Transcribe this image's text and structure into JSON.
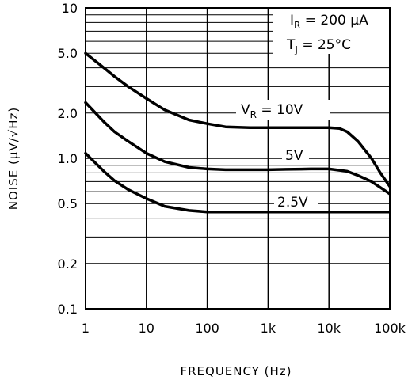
{
  "chart_data": {
    "type": "line",
    "xscale": "log",
    "yscale": "log",
    "xlim": [
      1,
      100000
    ],
    "ylim": [
      0.1,
      10
    ],
    "xlabel": "FREQUENCY (Hz)",
    "ylabel": "NOISE (μV/√Hz)",
    "x_ticks": [
      {
        "v": 1,
        "label": "1"
      },
      {
        "v": 10,
        "label": "10"
      },
      {
        "v": 100,
        "label": "100"
      },
      {
        "v": 1000,
        "label": "1k"
      },
      {
        "v": 10000,
        "label": "10k"
      },
      {
        "v": 100000,
        "label": "100k"
      }
    ],
    "y_ticks": [
      {
        "v": 10,
        "label": "10"
      },
      {
        "v": 5,
        "label": "5.0"
      },
      {
        "v": 2,
        "label": "2.0"
      },
      {
        "v": 1,
        "label": "1.0"
      },
      {
        "v": 0.5,
        "label": "0.5"
      },
      {
        "v": 0.2,
        "label": "0.2"
      },
      {
        "v": 0.1,
        "label": "0.1"
      }
    ],
    "grid": true,
    "conditions": {
      "ir_prefix": "I",
      "ir_sub": "R",
      "ir_value": " = 200 μA",
      "tj_prefix": "T",
      "tj_sub": "J",
      "tj_value": " = 25°C"
    },
    "series": [
      {
        "label_prefix": "V",
        "label_sub": "R",
        "label_value": " = 10V",
        "x": [
          1,
          2,
          3,
          5,
          10,
          20,
          50,
          100,
          200,
          500,
          1000,
          2000,
          5000,
          10000,
          15000,
          20000,
          30000,
          50000,
          70000,
          100000
        ],
        "y": [
          5.0,
          4.0,
          3.5,
          3.0,
          2.5,
          2.1,
          1.8,
          1.7,
          1.62,
          1.6,
          1.6,
          1.6,
          1.6,
          1.6,
          1.58,
          1.5,
          1.3,
          1.0,
          0.8,
          0.65
        ]
      },
      {
        "label": "5V",
        "x": [
          1,
          2,
          3,
          5,
          10,
          20,
          50,
          100,
          200,
          500,
          1000,
          2000,
          5000,
          10000,
          20000,
          30000,
          50000,
          70000,
          100000
        ],
        "y": [
          2.35,
          1.75,
          1.5,
          1.3,
          1.08,
          0.95,
          0.87,
          0.85,
          0.84,
          0.84,
          0.84,
          0.845,
          0.85,
          0.85,
          0.82,
          0.77,
          0.7,
          0.64,
          0.58
        ]
      },
      {
        "label": "2.5V",
        "x": [
          1,
          2,
          3,
          5,
          10,
          20,
          50,
          100,
          1000,
          10000,
          100000
        ],
        "y": [
          1.08,
          0.82,
          0.71,
          0.62,
          0.54,
          0.48,
          0.45,
          0.44,
          0.44,
          0.44,
          0.44
        ]
      }
    ]
  }
}
